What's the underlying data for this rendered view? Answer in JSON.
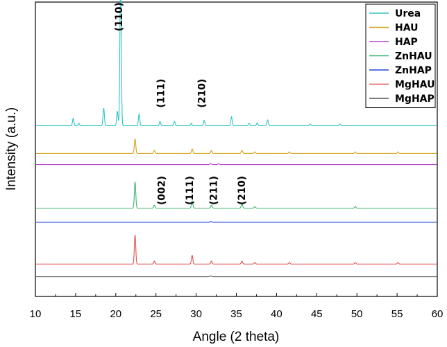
{
  "chart_data": {
    "type": "line",
    "xlabel": "Angle (2 theta)",
    "ylabel": "Intensity (a.u.)",
    "xlim": [
      10,
      60
    ],
    "x_ticks": [
      "10",
      "15",
      "20",
      "25",
      "30",
      "35",
      "40",
      "45",
      "50",
      "55",
      "60"
    ],
    "y_ticks_labeled": false,
    "grid": false,
    "legend_position": "top-right",
    "ylim": [
      0,
      100
    ],
    "series": [
      {
        "name": "Urea",
        "color": "#2ec4c4",
        "baseline": 58.0,
        "peaks": [
          [
            14.7,
            2.5
          ],
          [
            15.4,
            0.8
          ],
          [
            18.5,
            6
          ],
          [
            20.2,
            5
          ],
          [
            20.6,
            52
          ],
          [
            22.9,
            4
          ],
          [
            25.5,
            1.5
          ],
          [
            27.3,
            1.5
          ],
          [
            29.4,
            0.8
          ],
          [
            31.0,
            1.8
          ],
          [
            34.4,
            3
          ],
          [
            36.6,
            0.8
          ],
          [
            37.6,
            1
          ],
          [
            38.9,
            2
          ],
          [
            44.2,
            0.6
          ],
          [
            47.9,
            0.6
          ]
        ]
      },
      {
        "name": "HAU",
        "color": "#d4a017",
        "baseline": 48.6,
        "peaks": [
          [
            22.4,
            5
          ],
          [
            24.8,
            1
          ],
          [
            29.5,
            1.5
          ],
          [
            31.9,
            1
          ],
          [
            35.7,
            1
          ],
          [
            37.3,
            0.5
          ],
          [
            41.6,
            0.5
          ],
          [
            49.8,
            0.5
          ],
          [
            55.1,
            0.5
          ]
        ]
      },
      {
        "name": "HAP",
        "color": "#b84ad2",
        "baseline": 44.8,
        "peaks": [
          [
            31.8,
            0.4
          ],
          [
            32.8,
            0.3
          ]
        ]
      },
      {
        "name": "ZnHAU",
        "color": "#3cb371",
        "baseline": 30.0,
        "peaks": [
          [
            22.4,
            9
          ],
          [
            24.8,
            1
          ],
          [
            29.5,
            2.5
          ],
          [
            31.9,
            1
          ],
          [
            35.7,
            1.5
          ],
          [
            37.3,
            0.5
          ],
          [
            49.8,
            0.5
          ]
        ]
      },
      {
        "name": "ZnHAP",
        "color": "#1f47e0",
        "baseline": 25.2,
        "peaks": [
          [
            31.8,
            0.3
          ]
        ]
      },
      {
        "name": "MgHAU",
        "color": "#e05050",
        "baseline": 11.0,
        "peaks": [
          [
            22.4,
            10
          ],
          [
            24.8,
            1
          ],
          [
            29.5,
            3
          ],
          [
            31.9,
            1
          ],
          [
            35.7,
            1
          ],
          [
            37.3,
            0.5
          ],
          [
            41.6,
            0.5
          ],
          [
            49.8,
            0.5
          ],
          [
            55.1,
            0.5
          ]
        ]
      },
      {
        "name": "MgHAP",
        "color": "#555555",
        "baseline": 6.7,
        "peaks": [
          [
            31.8,
            0.3
          ]
        ]
      }
    ],
    "annotations": [
      {
        "text": "(110)",
        "x": 20.8,
        "y": 95,
        "rotate": true
      },
      {
        "text": "(111)",
        "x": 26.0,
        "y": 69,
        "rotate": true
      },
      {
        "text": "(210)",
        "x": 31.1,
        "y": 69,
        "rotate": true
      },
      {
        "text": "(002)",
        "x": 26.1,
        "y": 36,
        "rotate": true
      },
      {
        "text": "(111)",
        "x": 29.6,
        "y": 36,
        "rotate": true
      },
      {
        "text": "(211)",
        "x": 32.6,
        "y": 36,
        "rotate": true
      },
      {
        "text": "(210)",
        "x": 36.1,
        "y": 36,
        "rotate": true
      }
    ]
  }
}
